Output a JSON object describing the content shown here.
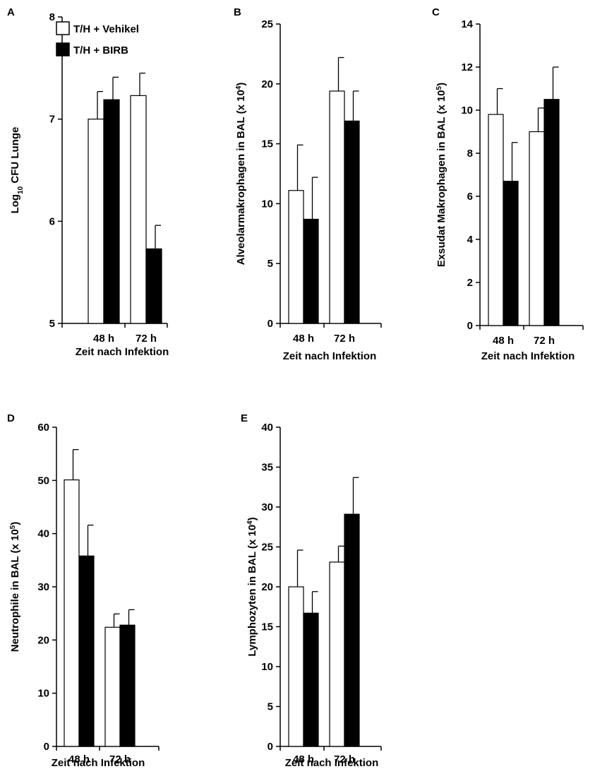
{
  "legend": {
    "items": [
      {
        "label": "T/H + Vehikel",
        "color": "#ffffff"
      },
      {
        "label": "T/H + BIRB",
        "color": "#000000"
      }
    ]
  },
  "chart_data": [
    {
      "panel": "A",
      "type": "bar",
      "categories": [
        "48 h",
        "72 h"
      ],
      "xlabel": "Zeit nach Infektion",
      "ylabel_main": "Log",
      "ylabel_sub": "10",
      "ylabel_rest": " CFU Lunge",
      "ylim": [
        5,
        8
      ],
      "yticks": [
        "5",
        "6",
        "7",
        "8"
      ],
      "series": [
        {
          "name": "T/H + Vehikel",
          "color": "#ffffff",
          "values": [
            7.0,
            7.23
          ],
          "errors": [
            0.27,
            0.22
          ]
        },
        {
          "name": "T/H + BIRB",
          "color": "#000000",
          "values": [
            7.19,
            5.73
          ],
          "errors": [
            0.22,
            0.23
          ]
        }
      ]
    },
    {
      "panel": "B",
      "type": "bar",
      "categories": [
        "48 h",
        "72 h"
      ],
      "xlabel": "Zeit nach Infektion",
      "ylabel_main": "Alveolarmakrophagen in BAL (x 10",
      "ylabel_sup": "4",
      "ylabel_rest": ")",
      "ylim": [
        0,
        25
      ],
      "yticks": [
        "0",
        "5",
        "10",
        "15",
        "20",
        "25"
      ],
      "series": [
        {
          "name": "T/H + Vehikel",
          "color": "#ffffff",
          "values": [
            11.1,
            19.4
          ],
          "errors": [
            3.8,
            2.8
          ]
        },
        {
          "name": "T/H + BIRB",
          "color": "#000000",
          "values": [
            8.7,
            16.9
          ],
          "errors": [
            3.5,
            2.5
          ]
        }
      ]
    },
    {
      "panel": "C",
      "type": "bar",
      "categories": [
        "48 h",
        "72 h"
      ],
      "xlabel": "Zeit nach Infektion",
      "ylabel_main": "Exsudat  Makrophagen in BAL (x 10",
      "ylabel_sup": "5",
      "ylabel_rest": ")",
      "ylim": [
        0,
        14
      ],
      "yticks": [
        "0",
        "2",
        "4",
        "6",
        "8",
        "10",
        "12",
        "14"
      ],
      "series": [
        {
          "name": "T/H + Vehikel",
          "color": "#ffffff",
          "values": [
            9.8,
            9.0
          ],
          "errors": [
            1.2,
            1.1
          ]
        },
        {
          "name": "T/H + BIRB",
          "color": "#000000",
          "values": [
            6.7,
            10.5
          ],
          "errors": [
            1.8,
            1.5
          ]
        }
      ]
    },
    {
      "panel": "D",
      "type": "bar",
      "categories": [
        "48 h",
        "72 h"
      ],
      "xlabel": "Zeit nach Infektion",
      "ylabel_main": "Neutrophile in BAL (x 10",
      "ylabel_sup": "5",
      "ylabel_rest": ")",
      "ylim": [
        0,
        60
      ],
      "yticks": [
        "0",
        "10",
        "20",
        "30",
        "40",
        "50",
        "60"
      ],
      "series": [
        {
          "name": "T/H + Vehikel",
          "color": "#ffffff",
          "values": [
            50.1,
            22.4
          ],
          "errors": [
            5.7,
            2.5
          ]
        },
        {
          "name": "T/H + BIRB",
          "color": "#000000",
          "values": [
            35.8,
            22.8
          ],
          "errors": [
            5.8,
            2.9
          ]
        }
      ]
    },
    {
      "panel": "E",
      "type": "bar",
      "categories": [
        "48 h",
        "72 h"
      ],
      "xlabel": "Zeit nach Infektion",
      "ylabel_main": "Lymphozyten in BAL (x 10",
      "ylabel_sup": "4",
      "ylabel_rest": ")",
      "ylim": [
        0,
        40
      ],
      "yticks": [
        "0",
        "5",
        "10",
        "15",
        "20",
        "25",
        "30",
        "35",
        "40"
      ],
      "series": [
        {
          "name": "T/H + Vehikel",
          "color": "#ffffff",
          "values": [
            20.0,
            23.1
          ],
          "errors": [
            4.6,
            2.0
          ]
        },
        {
          "name": "T/H + BIRB",
          "color": "#000000",
          "values": [
            16.7,
            29.1
          ],
          "errors": [
            2.7,
            4.6
          ]
        }
      ]
    }
  ]
}
